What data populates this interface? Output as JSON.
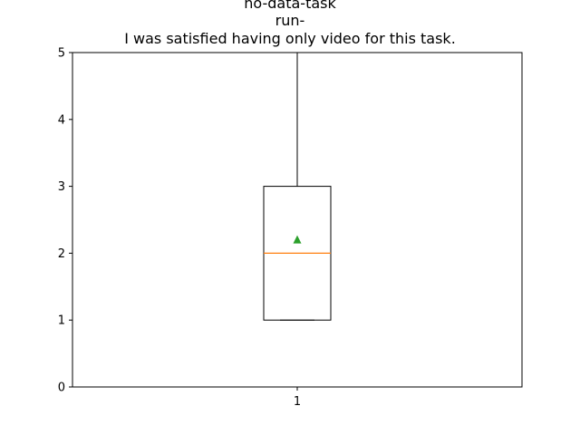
{
  "chart_data": {
    "type": "box",
    "title_lines": [
      "no-data-task",
      "run-",
      "I was satisfied having only video for this task."
    ],
    "xlabel": "",
    "ylabel": "",
    "categories": [
      "1"
    ],
    "ylim": [
      0,
      5
    ],
    "yticks": [
      0,
      1,
      2,
      3,
      4,
      5
    ],
    "boxes": [
      {
        "category": "1",
        "whisker_low": 1,
        "q1": 1,
        "median": 2,
        "q3": 3,
        "whisker_high": 5,
        "mean": 2.2
      }
    ],
    "grid": false,
    "legend": "none",
    "colors": {
      "box": "#000000",
      "median": "#ff7f0e",
      "mean_marker": "#2ca02c"
    }
  }
}
